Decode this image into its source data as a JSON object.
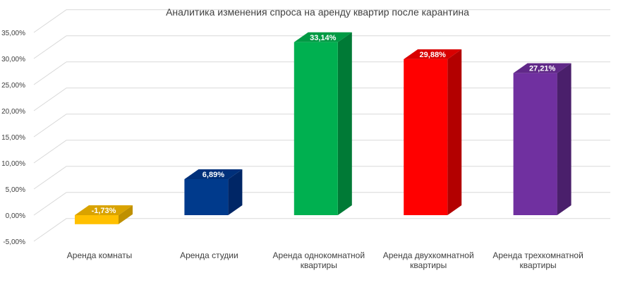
{
  "chart_data": {
    "type": "bar",
    "title": "Аналитика изменения спроса на аренду квартир после карантина",
    "xlabel": "",
    "ylabel": "",
    "ylim": [
      -5,
      35
    ],
    "y_ticks": [
      "-5,00%",
      "0,00%",
      "5,00%",
      "10,00%",
      "15,00%",
      "20,00%",
      "25,00%",
      "30,00%",
      "35,00%"
    ],
    "y_tick_values": [
      -5,
      0,
      5,
      10,
      15,
      20,
      25,
      30,
      35
    ],
    "grid": true,
    "legend": "none",
    "categories": [
      [
        "Аренда комнаты"
      ],
      [
        "Аренда студии"
      ],
      [
        "Аренда однокомнатной",
        "квартиры"
      ],
      [
        "Аренда двухкомнатной",
        "квартиры"
      ],
      [
        "Аренда трехкомнатной",
        "квартиры"
      ]
    ],
    "values": [
      -1.73,
      6.89,
      33.14,
      29.88,
      27.21
    ],
    "data_labels": [
      "-1,73%",
      "6,89%",
      "33,14%",
      "29,88%",
      "27,21%"
    ],
    "colors": [
      {
        "front": "#FFC000",
        "side": "#BF9000",
        "top": "#D9A300"
      },
      {
        "front": "#003A8C",
        "side": "#002666",
        "top": "#00307A"
      },
      {
        "front": "#00B050",
        "side": "#007A36",
        "top": "#009A44"
      },
      {
        "front": "#FF0000",
        "side": "#B30000",
        "top": "#D90000"
      },
      {
        "front": "#7030A0",
        "side": "#4A1F6B",
        "top": "#602888"
      }
    ]
  }
}
